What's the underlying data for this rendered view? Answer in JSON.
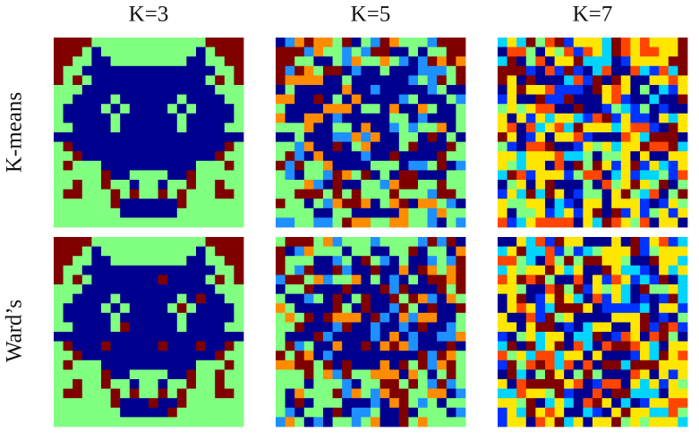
{
  "columns": [
    "K=3",
    "K=5",
    "K=7"
  ],
  "rows": [
    "K-means",
    "Ward’s"
  ]
}
